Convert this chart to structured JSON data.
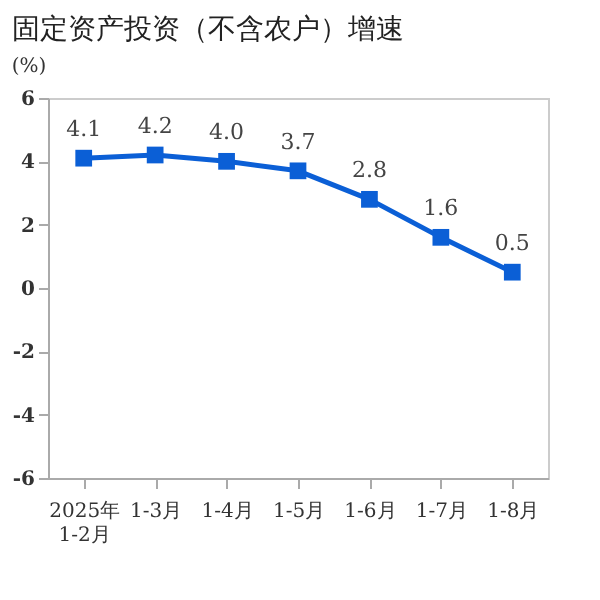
{
  "chart_data": {
    "type": "line",
    "title": "固定资产投资（不含农户）增速",
    "ylabel": "(%)",
    "categories": [
      "2025年\n1-2月",
      "1-3月",
      "1-4月",
      "1-5月",
      "1-6月",
      "1-7月",
      "1-8月"
    ],
    "series": [
      {
        "color": "#0b5fd6",
        "values": [
          4.1,
          4.2,
          4.0,
          3.7,
          2.8,
          1.6,
          0.5
        ]
      }
    ],
    "ylim": [
      -6,
      6
    ],
    "yticks": [
      -6,
      -4,
      -2,
      0,
      2,
      4,
      6
    ],
    "marker": "square",
    "value_labels": [
      "4.1",
      "4.2",
      "4.0",
      "3.7",
      "2.8",
      "1.6",
      "0.5"
    ],
    "grid": false,
    "legend": false
  }
}
